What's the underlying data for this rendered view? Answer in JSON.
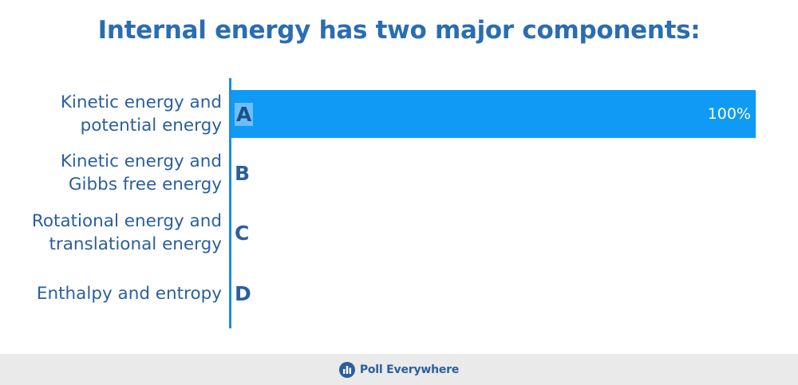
{
  "title": "Internal energy has two major components:",
  "chart_data": {
    "type": "bar",
    "orientation": "horizontal",
    "categories": [
      "Kinetic energy and\npotential energy",
      "Kinetic energy and\nGibbs free energy",
      "Rotational energy and\ntranslational energy",
      "Enthalpy and entropy"
    ],
    "letters": [
      "A",
      "B",
      "C",
      "D"
    ],
    "values": [
      100,
      0,
      0,
      0
    ],
    "value_labels": [
      "100%",
      "",
      "",
      ""
    ],
    "xlim": [
      0,
      100
    ],
    "bar_color": "#0f9af6",
    "grid": false
  },
  "footer": {
    "brand": "Poll Everywhere",
    "brand_icon": "poll-everywhere-logo-icon"
  },
  "colors": {
    "title": "#2a6db2",
    "label": "#2a5f9e",
    "axis": "#1a8fe3",
    "footer_bg": "#eaeaea"
  }
}
